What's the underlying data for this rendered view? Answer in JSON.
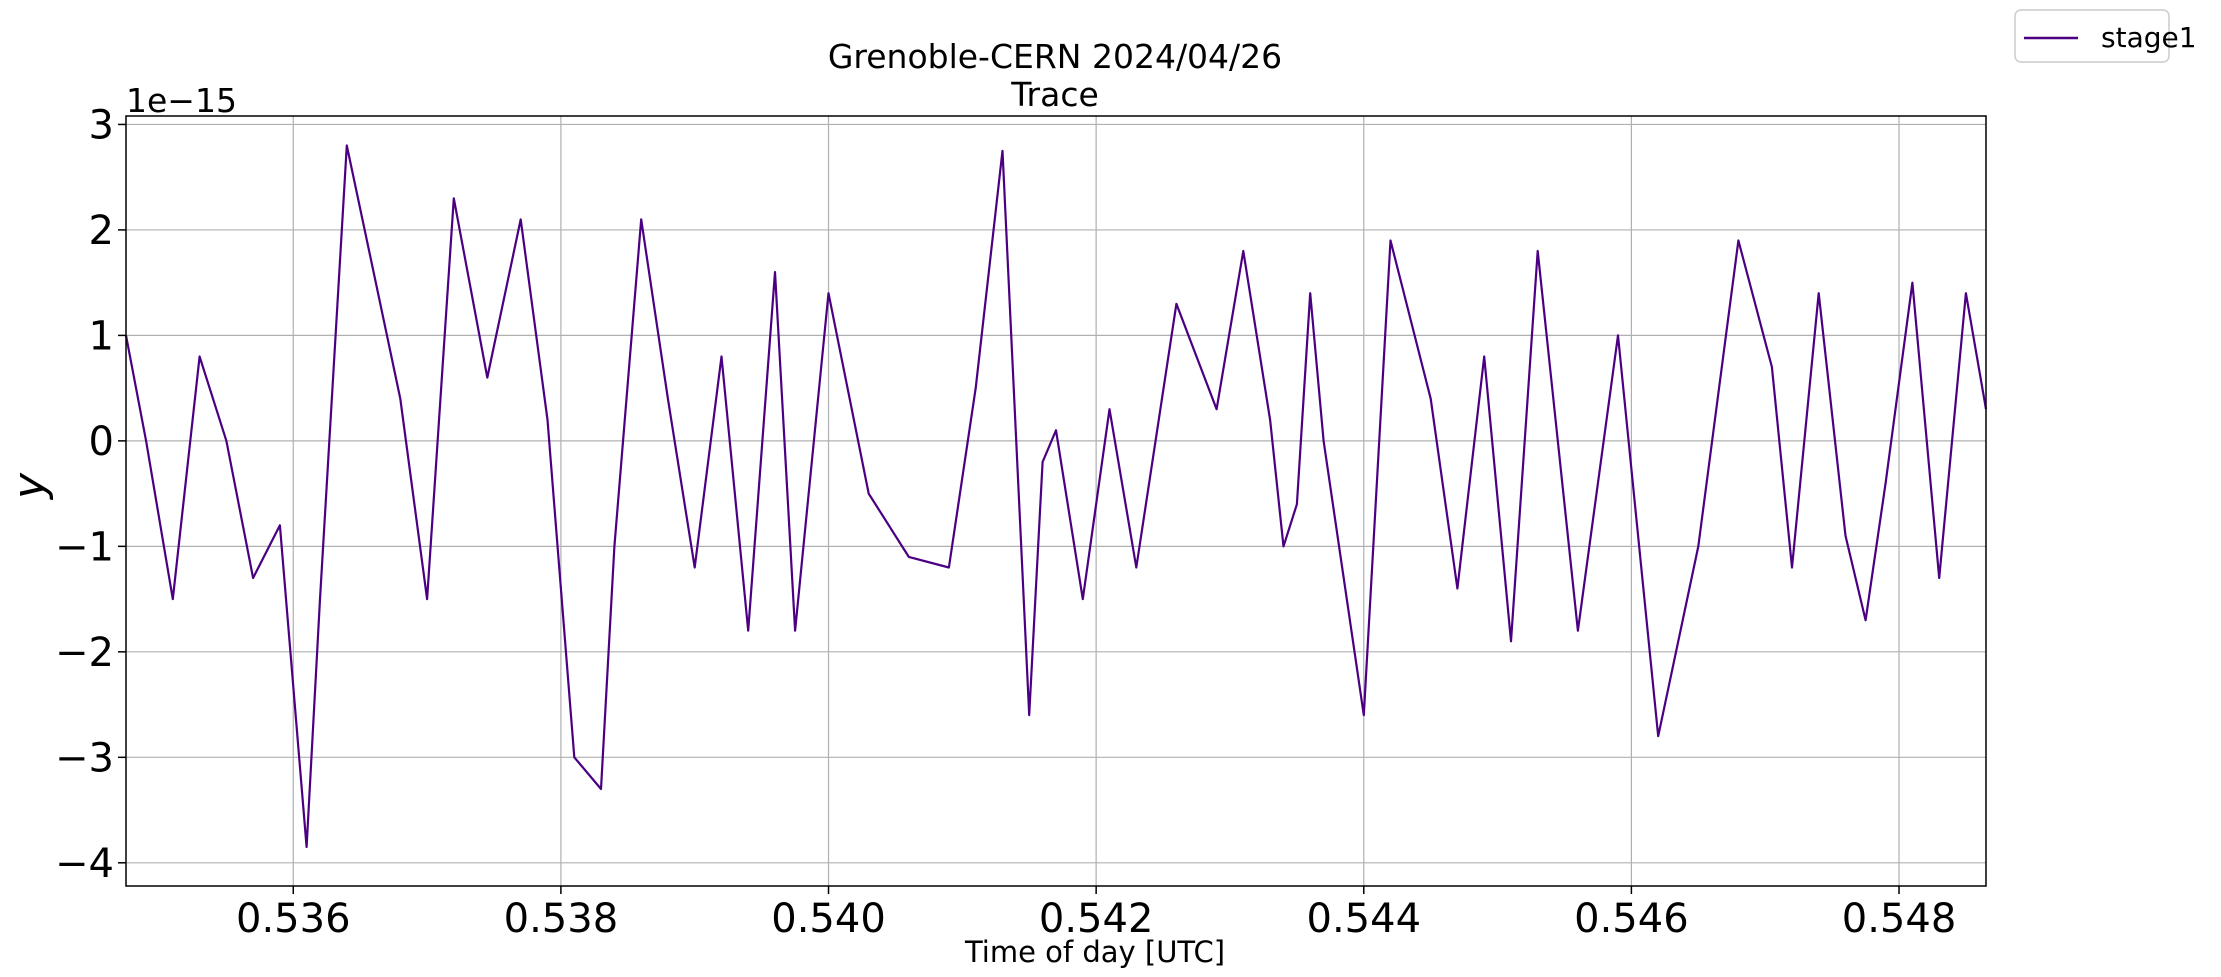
{
  "colors": {
    "series": "#4b0082",
    "grid": "#b0b0b0",
    "axis": "#000000"
  },
  "chart_data": {
    "type": "line",
    "title": "Grenoble-CERN 2024/04/26",
    "subtitle": "Trace",
    "xlabel": "Time of day [UTC]",
    "ylabel": "y",
    "y_offset_label": "1e−15",
    "xlim": [
      0.53475,
      0.54865
    ],
    "ylim": [
      -4.22,
      3.08
    ],
    "x_ticks": [
      0.536,
      0.538,
      0.54,
      0.542,
      0.544,
      0.546,
      0.548
    ],
    "x_tick_labels": [
      "0.536",
      "0.538",
      "0.540",
      "0.542",
      "0.544",
      "0.546",
      "0.548"
    ],
    "y_ticks": [
      -4,
      -3,
      -2,
      -1,
      0,
      1,
      2,
      3
    ],
    "y_tick_labels": [
      "−4",
      "−3",
      "−2",
      "−1",
      "0",
      "1",
      "2",
      "3"
    ],
    "grid": true,
    "legend": {
      "position": "outside-top-right",
      "entries": [
        "stage1"
      ]
    },
    "series": [
      {
        "name": "stage1",
        "x": [
          0.53475,
          0.5349,
          0.5351,
          0.5353,
          0.5355,
          0.5357,
          0.5359,
          0.5361,
          0.5362,
          0.5364,
          0.5366,
          0.5368,
          0.537,
          0.5372,
          0.53745,
          0.5377,
          0.5379,
          0.5381,
          0.5383,
          0.5384,
          0.5386,
          0.5388,
          0.539,
          0.5392,
          0.5394,
          0.5396,
          0.53975,
          0.54,
          0.5403,
          0.5406,
          0.5409,
          0.5411,
          0.5413,
          0.5415,
          0.5416,
          0.5417,
          0.5419,
          0.5421,
          0.5423,
          0.5426,
          0.5429,
          0.5431,
          0.5433,
          0.5434,
          0.5435,
          0.5436,
          0.5437,
          0.544,
          0.5442,
          0.5445,
          0.5447,
          0.5449,
          0.5451,
          0.5453,
          0.5456,
          0.5459,
          0.5462,
          0.5465,
          0.5468,
          0.54705,
          0.5472,
          0.5474,
          0.5476,
          0.54775,
          0.5479,
          0.5481,
          0.5483,
          0.5485,
          0.54865
        ],
        "values": [
          1.0,
          0.0,
          -1.5,
          0.8,
          0.0,
          -1.3,
          -0.8,
          -3.85,
          -1.5,
          2.8,
          1.6,
          0.4,
          -1.5,
          2.3,
          0.6,
          2.1,
          0.2,
          -3.0,
          -3.3,
          -1.0,
          2.1,
          0.4,
          -1.2,
          0.8,
          -1.8,
          1.6,
          -1.8,
          1.4,
          -0.5,
          -1.1,
          -1.2,
          0.5,
          2.75,
          -2.6,
          -0.2,
          0.1,
          -1.5,
          0.3,
          -1.2,
          1.3,
          0.3,
          1.8,
          0.2,
          -1.0,
          -0.6,
          1.4,
          0.0,
          -2.6,
          1.9,
          0.4,
          -1.4,
          0.8,
          -1.9,
          1.8,
          -1.8,
          1.0,
          -2.8,
          -1.0,
          1.9,
          0.7,
          -1.2,
          1.4,
          -0.9,
          -1.7,
          -0.4,
          1.5,
          -1.3,
          1.4,
          0.3
        ]
      }
    ]
  }
}
